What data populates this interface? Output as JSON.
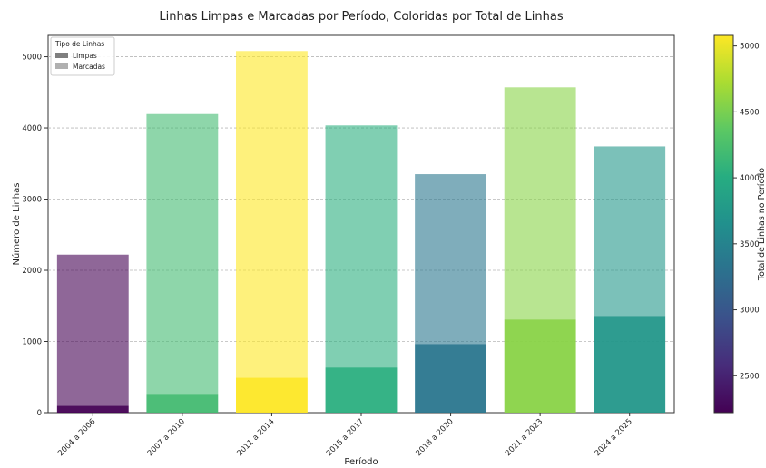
{
  "chart_data": {
    "type": "bar",
    "title": "Linhas Limpas e Marcadas por Período, Coloridas por Total de Linhas",
    "xlabel": "Período",
    "ylabel": "Número de Linhas",
    "categories": [
      "2004 a 2006",
      "2007 a 2010",
      "2011 a 2014",
      "2015 a 2017",
      "2018 a 2020",
      "2021 a 2023",
      "2024 a 2025"
    ],
    "series": [
      {
        "name": "Limpas",
        "values": [
          95,
          265,
          490,
          635,
          965,
          1310,
          1360
        ],
        "stacked_base": true
      },
      {
        "name": "Marcadas",
        "values": [
          2125,
          3930,
          4590,
          3400,
          2385,
          3260,
          2380
        ],
        "stacked_on": "Limpas"
      }
    ],
    "totals": [
      2220,
      4195,
      5080,
      4035,
      3350,
      4570,
      3740
    ],
    "ylim": [
      0,
      5300
    ],
    "yticks": [
      0,
      1000,
      2000,
      3000,
      4000,
      5000
    ],
    "grid": "horizontal dashed",
    "legend": {
      "title": "Tipo de Linhas",
      "placement": "top-left",
      "entries": [
        "Limpas",
        "Marcadas"
      ]
    },
    "colorbar": {
      "label": "Total de Linhas no Período",
      "range": [
        2220,
        5080
      ],
      "ticks": [
        2500,
        3000,
        3500,
        4000,
        4500,
        5000
      ],
      "colormap": "viridis"
    },
    "colors": {
      "legend_limpas": "#7f7f7f",
      "legend_marcadas": "#b0b0b0"
    }
  }
}
